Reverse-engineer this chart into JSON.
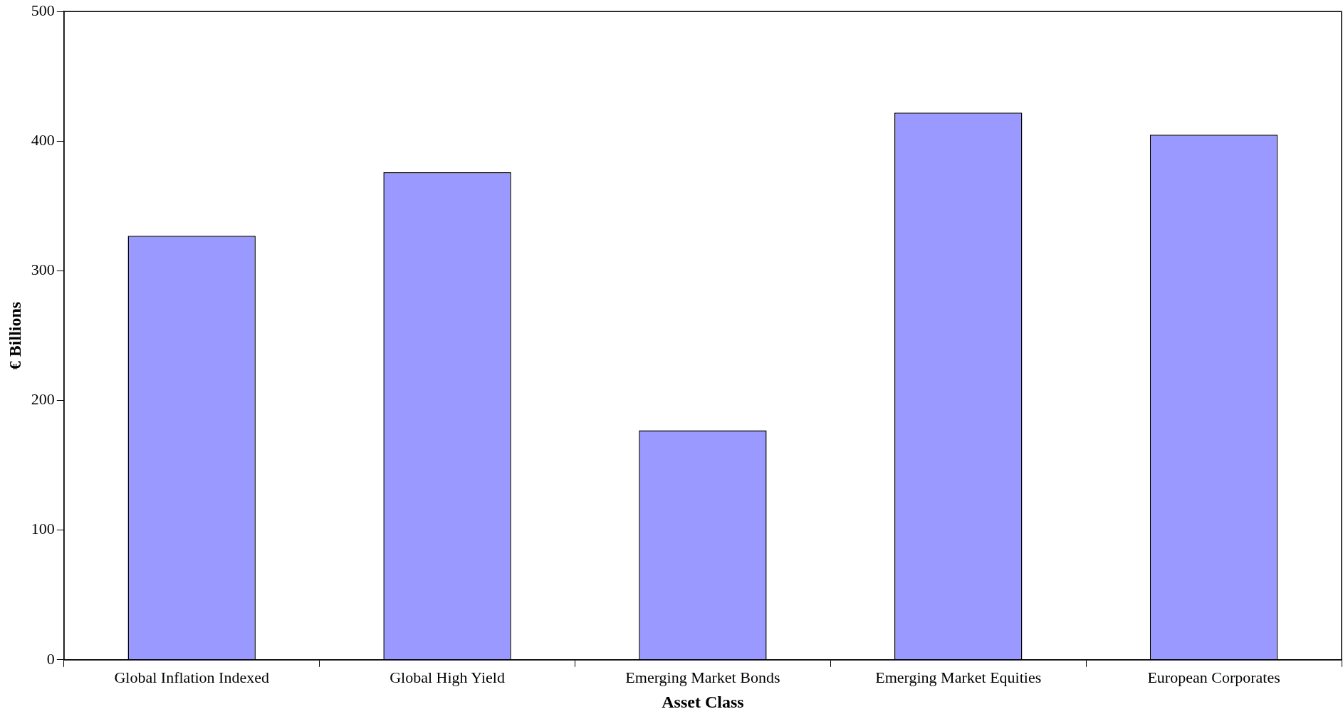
{
  "chart_data": {
    "type": "bar",
    "xlabel": "Asset Class",
    "ylabel": "€ Billions",
    "categories": [
      "Global Inflation Indexed",
      "Global High Yield",
      "Emerging Market Bonds",
      "Emerging Market Equities",
      "European Corporates"
    ],
    "values": [
      327,
      376,
      177,
      422,
      405
    ],
    "color": "#9999ff",
    "ylim": [
      0,
      500
    ],
    "yticks": [
      0,
      100,
      200,
      300,
      400,
      500
    ],
    "grid": false,
    "legend": false
  }
}
